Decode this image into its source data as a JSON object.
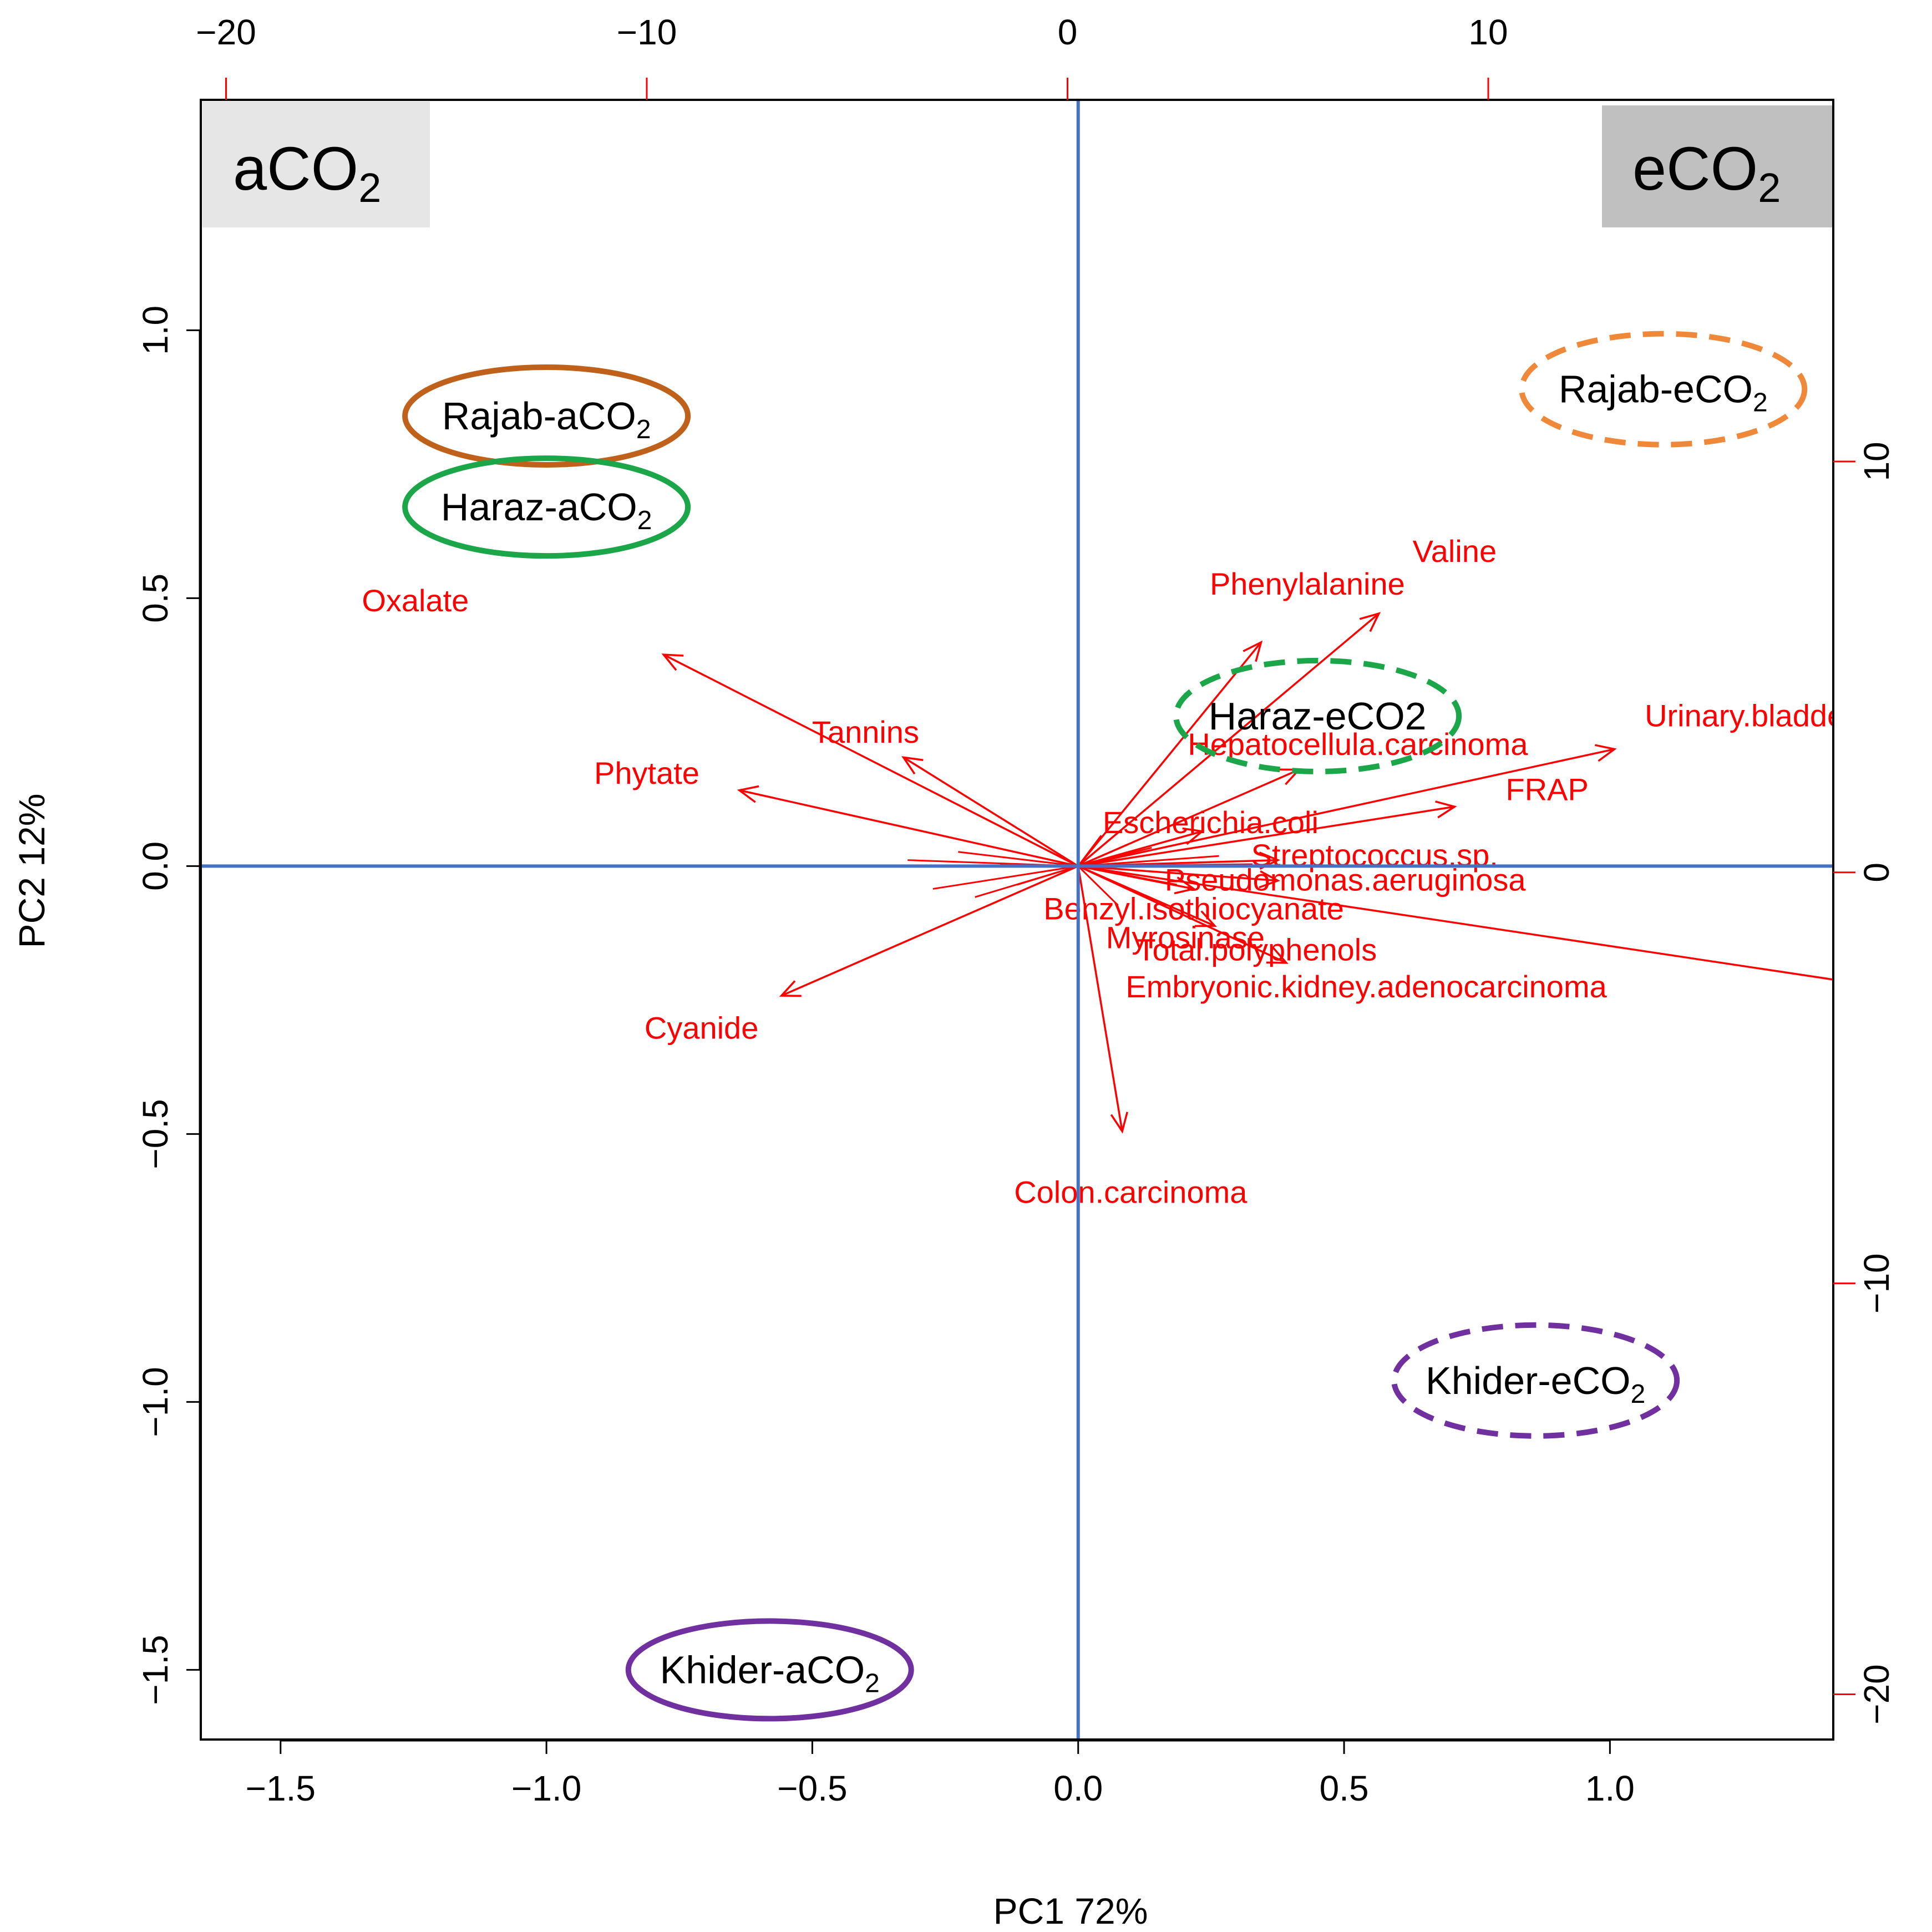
{
  "chart_data": {
    "type": "scatter",
    "subtype": "pca-biplot",
    "xlabel": "PC1 72%",
    "ylabel": "PC2 12%",
    "xlim": [
      -1.65,
      1.42
    ],
    "ylim": [
      -1.63,
      1.43
    ],
    "x_ticks": [
      -1.5,
      -1.0,
      -0.5,
      0.0,
      0.5,
      1.0
    ],
    "x_tick_labels": [
      "−1.5",
      "−1.0",
      "−0.5",
      "0.0",
      "0.5",
      "1.0"
    ],
    "y_ticks": [
      -1.5,
      -1.0,
      -0.5,
      0.0,
      0.5,
      1.0
    ],
    "y_tick_labels": [
      "−1.5",
      "−1.0",
      "−0.5",
      "0.0",
      "0.5",
      "1.0"
    ],
    "top_axis": {
      "range": [
        -20.6,
        18.2
      ],
      "ticks": [
        -20,
        -10,
        0,
        10
      ],
      "tick_labels": [
        "−20",
        "−10",
        "0",
        "10"
      ],
      "color": "#ff0000"
    },
    "right_axis": {
      "range": [
        -21.1,
        18.8
      ],
      "ticks": [
        -20,
        -10,
        0,
        10
      ],
      "tick_labels": [
        "−20",
        "−10",
        "0",
        "10"
      ],
      "color": "#ff0000"
    },
    "corner_labels": {
      "left": {
        "text": "aCO",
        "sub": "2",
        "bg": "#e6e6e6"
      },
      "right": {
        "text": "eCO",
        "sub": "2",
        "bg": "#c0c0c0"
      }
    },
    "groups": [
      {
        "name": "Rajab-aCO",
        "sub": "2",
        "x": -1.0,
        "y": 0.84,
        "color": "#c0611b",
        "style": "solid"
      },
      {
        "name": "Haraz-aCO",
        "sub": "2",
        "x": -1.0,
        "y": 0.67,
        "color": "#1ca64a",
        "style": "solid"
      },
      {
        "name": "Khider-aCO",
        "sub": "2",
        "x": -0.58,
        "y": -1.5,
        "color": "#7030a0",
        "style": "solid"
      },
      {
        "name": "Rajab-eCO",
        "sub": "2",
        "x": 1.1,
        "y": 0.89,
        "color": "#f0883a",
        "style": "dashed"
      },
      {
        "name": "Haraz-eCO2",
        "sub": "",
        "x": 0.45,
        "y": 0.28,
        "color": "#1ca64a",
        "style": "dashed"
      },
      {
        "name": "Khider-eCO",
        "sub": "2",
        "x": 0.86,
        "y": -0.96,
        "color": "#7030a0",
        "style": "dashed"
      }
    ],
    "loadings": [
      {
        "name": "Oxalate",
        "x": -9.6,
        "y": 5.3,
        "lx": -15.5,
        "ly": 6.6
      },
      {
        "name": "Phytate",
        "x": -7.8,
        "y": 2.0,
        "lx": -10.0,
        "ly": 2.4
      },
      {
        "name": "Tannins",
        "x": -3.9,
        "y": 2.8,
        "lx": -4.8,
        "ly": 3.4
      },
      {
        "name": "Cyanide",
        "x": -6.8,
        "y": -3.0,
        "lx": -8.7,
        "ly": -3.8
      },
      {
        "name": "Valine",
        "x": 7.4,
        "y": 6.3,
        "lx": 9.2,
        "ly": 7.8
      },
      {
        "name": "Phenylalanine",
        "x": 4.6,
        "y": 5.6,
        "lx": 5.7,
        "ly": 7.0
      },
      {
        "name": "Urinary.bladder.carcinoma",
        "x": 13.0,
        "y": 3.0,
        "lx": 18.0,
        "ly": 3.8
      },
      {
        "name": "FRAP",
        "x": 9.2,
        "y": 1.6,
        "lx": 11.4,
        "ly": 2.0
      },
      {
        "name": "Hepatocellula.carcinoma",
        "x": 5.5,
        "y": 2.5,
        "lx": 6.9,
        "ly": 3.1
      },
      {
        "name": "Escherichia.coli",
        "x": 3.2,
        "y": 1.0,
        "lx": 3.4,
        "ly": 1.2
      },
      {
        "name": "Streptococcus.sp.",
        "x": 5.0,
        "y": 0.3,
        "lx": 7.3,
        "ly": 0.4
      },
      {
        "name": "Pseudomonas.aeruginosa",
        "x": 5.0,
        "y": -0.2,
        "lx": 6.6,
        "ly": -0.2
      },
      {
        "name": "Benzyl.isothiocyanate",
        "x": 3.0,
        "y": -0.4,
        "lx": 3.0,
        "ly": -0.9
      },
      {
        "name": "Myrosinase",
        "x": 3.5,
        "y": -1.3,
        "lx": 2.8,
        "ly": -1.6
      },
      {
        "name": "Total.polyphenols",
        "x": 5.2,
        "y": -2.2,
        "lx": 4.5,
        "ly": -1.9
      },
      {
        "name": "Embryonic.kidney.adenocarcinoma",
        "x": 18.8,
        "y": -2.7,
        "lx": 7.1,
        "ly": -2.8
      },
      {
        "name": "Colon.carcinoma",
        "x": 1.3,
        "y": -6.3,
        "lx": 1.5,
        "ly": -7.8
      }
    ]
  }
}
